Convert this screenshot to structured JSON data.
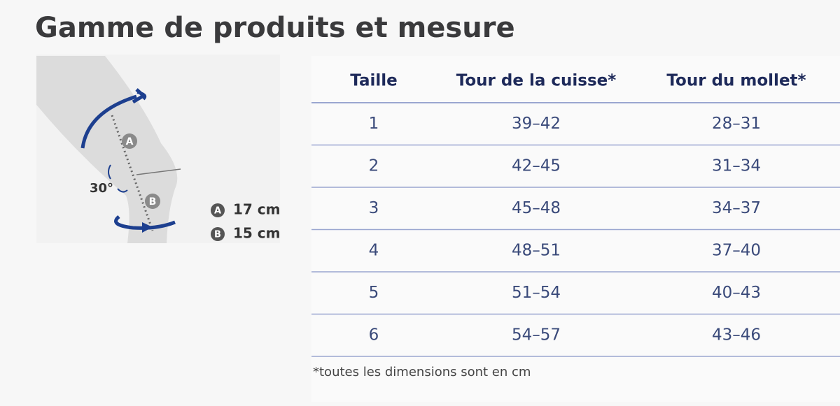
{
  "header": {
    "title": "Gamme de produits et mesure"
  },
  "diagram": {
    "angle": "30°",
    "markers": [
      {
        "letter": "A",
        "measure": "17 cm"
      },
      {
        "letter": "B",
        "measure": "15 cm"
      }
    ]
  },
  "table": {
    "columns": [
      "Taille",
      "Tour de la cuisse*",
      "Tour du mollet*"
    ],
    "rows": [
      [
        "1",
        "39–42",
        "28–31"
      ],
      [
        "2",
        "42–45",
        "31–34"
      ],
      [
        "3",
        "45–48",
        "34–37"
      ],
      [
        "4",
        "48–51",
        "37–40"
      ],
      [
        "5",
        "51–54",
        "40–43"
      ],
      [
        "6",
        "54–57",
        "43–46"
      ]
    ]
  },
  "footnote": "*toutes les dimensions sont en cm"
}
